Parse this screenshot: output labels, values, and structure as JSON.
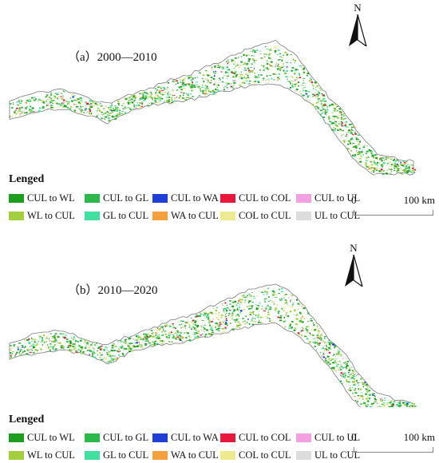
{
  "panels": [
    {
      "label": "（a）2000—2010",
      "north": "N"
    },
    {
      "label": "（b）2010—2020",
      "north": "N"
    }
  ],
  "legend": {
    "title": "Lenged",
    "items": [
      {
        "label": "CUL to WL",
        "color": "#1f9d1f"
      },
      {
        "label": "CUL to GL",
        "color": "#2db84a"
      },
      {
        "label": "CUL to WA",
        "color": "#1f3fd6"
      },
      {
        "label": "CUL to COL",
        "color": "#e8183c"
      },
      {
        "label": "CUL to UL",
        "color": "#f2a0e0"
      },
      {
        "label": "WL to CUL",
        "color": "#a3cf3f"
      },
      {
        "label": "GL to CUL",
        "color": "#3fe0a0"
      },
      {
        "label": "WA to CUL",
        "color": "#f5a03c"
      },
      {
        "label": "COL to CUL",
        "color": "#eeea90"
      },
      {
        "label": "UL to CUL",
        "color": "#dcdcdc"
      }
    ]
  },
  "scalebar": {
    "zero": "0",
    "max": "100 km"
  },
  "colors": {
    "boundary": "#7a7a7a",
    "region_fill": "#ffffff"
  }
}
